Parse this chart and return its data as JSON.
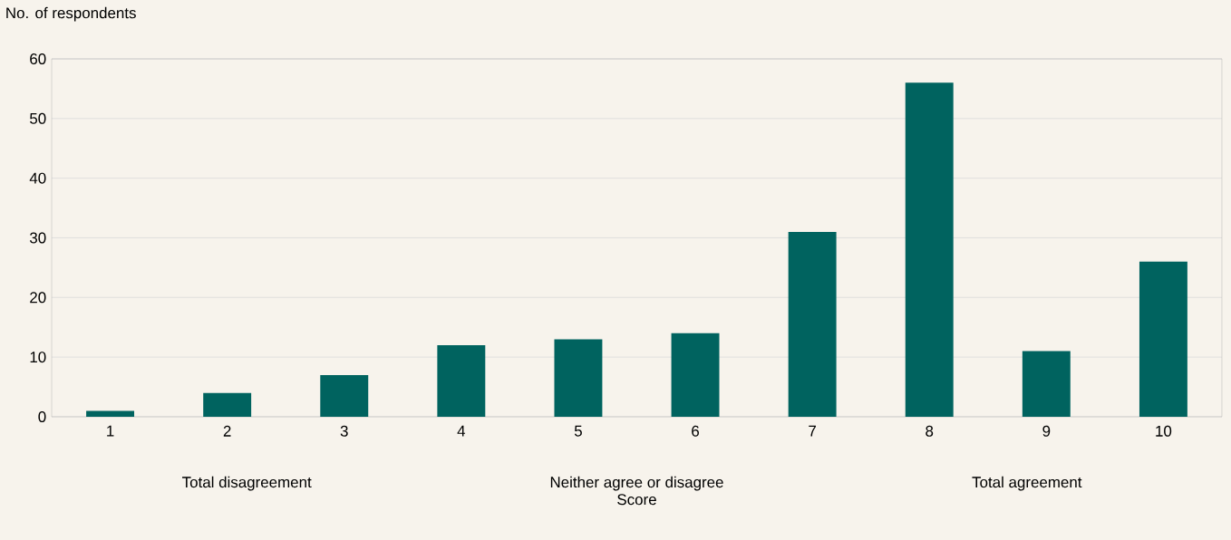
{
  "chart_data": {
    "type": "bar",
    "ylabel": "No. of respondents",
    "xlabel": "Score",
    "categories": [
      "1",
      "2",
      "3",
      "4",
      "5",
      "6",
      "7",
      "8",
      "9",
      "10"
    ],
    "values": [
      1,
      4,
      7,
      12,
      13,
      14,
      31,
      56,
      11,
      26
    ],
    "color": "#00635f",
    "ylim": [
      0,
      60
    ],
    "yticks": [
      0,
      10,
      20,
      30,
      40,
      50,
      60
    ],
    "grid": "y",
    "annotations": [
      "Total disagreement",
      "Neither agree or disagree",
      "Total agreement"
    ]
  }
}
